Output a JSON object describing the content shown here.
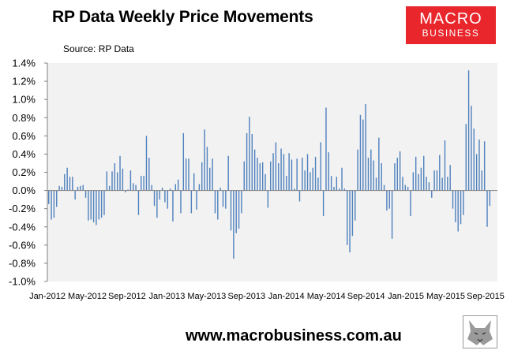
{
  "header": {
    "title": "RP Data Weekly Price Movements",
    "source": "Source: RP Data"
  },
  "logo": {
    "line1": "MACRO",
    "line2": "BUSINESS"
  },
  "footer": {
    "url": "www.macrobusiness.com.au"
  },
  "colors": {
    "bar": "#4f81bd",
    "plot_bg": "#f2f2f2",
    "logo_bg": "#e8262b"
  },
  "chart_data": {
    "type": "bar",
    "y_tick_labels": [
      "1.4%",
      "1.2%",
      "1.0%",
      "0.8%",
      "0.6%",
      "0.4%",
      "0.2%",
      "0.0%",
      "-0.2%",
      "-0.4%",
      "-0.6%",
      "-0.8%",
      "-1.0%"
    ],
    "x_tick_labels": [
      "Jan-2012",
      "May-2012",
      "Sep-2012",
      "Jan-2013",
      "May-2013",
      "Sep-2013",
      "Jan-2014",
      "May-2014",
      "Sep-2014",
      "Jan-2015",
      "May-2015",
      "Sep-2015"
    ],
    "ylim": [
      -1.0,
      1.4
    ],
    "values": [
      -0.15,
      -0.32,
      -0.3,
      -0.18,
      0.05,
      0.04,
      0.18,
      0.25,
      0.15,
      0.15,
      -0.1,
      0.04,
      0.05,
      0.06,
      -0.08,
      -0.33,
      -0.32,
      -0.35,
      -0.38,
      -0.32,
      -0.3,
      -0.27,
      0.21,
      0.05,
      0.21,
      0.3,
      0.2,
      0.38,
      0.24,
      -0.02,
      0.01,
      0.22,
      0.08,
      0.06,
      -0.27,
      0.16,
      0.16,
      0.6,
      0.36,
      0.06,
      -0.17,
      -0.3,
      -0.1,
      0.03,
      -0.13,
      -0.2,
      0.02,
      -0.34,
      0.07,
      0.12,
      -0.25,
      0.63,
      0.35,
      0.35,
      -0.25,
      0.19,
      -0.21,
      0.07,
      0.31,
      0.67,
      0.48,
      0.25,
      0.35,
      -0.25,
      -0.32,
      0.03,
      -0.18,
      -0.2,
      0.38,
      -0.44,
      -0.75,
      -0.47,
      -0.42,
      -0.25,
      0.32,
      0.63,
      0.81,
      0.62,
      0.45,
      0.36,
      0.3,
      0.31,
      0.18,
      -0.19,
      0.32,
      0.41,
      0.53,
      0.3,
      0.46,
      0.4,
      0.16,
      0.41,
      0.34,
      0.02,
      0.35,
      -0.12,
      0.36,
      0.22,
      0.4,
      0.2,
      0.25,
      0.37,
      0.14,
      0.53,
      -0.28,
      0.91,
      0.42,
      0.16,
      0.04,
      0.15,
      0.02,
      0.25,
      0.02,
      -0.6,
      -0.68,
      -0.5,
      -0.33,
      0.45,
      0.83,
      0.78,
      0.95,
      0.36,
      0.45,
      0.33,
      0.14,
      0.58,
      0.3,
      0.06,
      -0.22,
      -0.2,
      -0.53,
      0.3,
      0.36,
      0.43,
      0.15,
      0.06,
      0.04,
      -0.28,
      0.2,
      0.37,
      0.18,
      0.25,
      0.38,
      0.15,
      0.09,
      -0.08,
      0.22,
      0.22,
      0.39,
      0.14,
      0.55,
      0.15,
      0.28,
      -0.2,
      -0.35,
      -0.45,
      -0.37,
      -0.27,
      0.73,
      1.32,
      0.93,
      0.68,
      0.4,
      0.56,
      0.22,
      0.54,
      -0.4,
      -0.17
    ]
  }
}
